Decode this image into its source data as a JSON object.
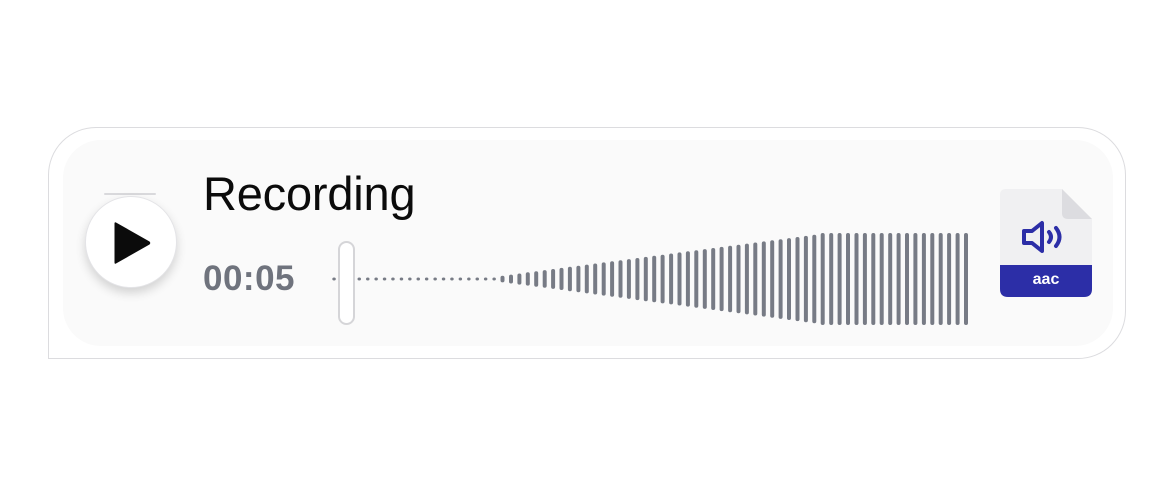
{
  "player": {
    "title": "Recording",
    "elapsed": "00:05",
    "progress_fraction": 0.02
  },
  "attachment": {
    "extension": "aac",
    "icon": "speaker-icon",
    "accent_color": "#2c2ea7"
  },
  "colors": {
    "waveform_bar": "#777b85",
    "text_primary": "#0b0b0b",
    "text_muted": "#6f737d"
  }
}
